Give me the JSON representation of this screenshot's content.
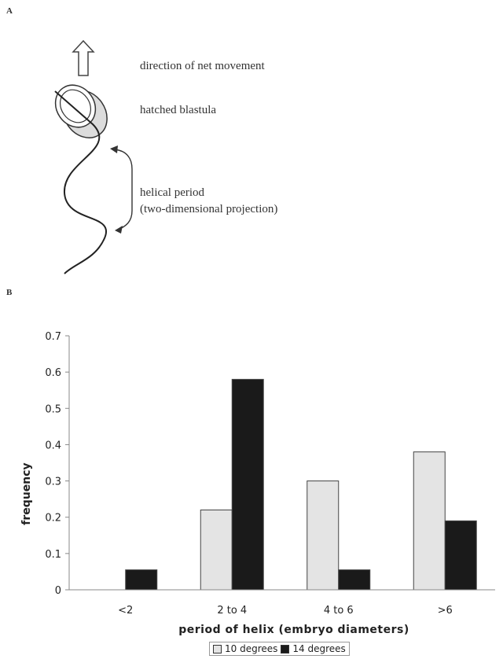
{
  "panel_a": {
    "label": "A",
    "direction_label": "direction of net movement",
    "embryo_label": "hatched blastula",
    "period_label_line1": "helical period",
    "period_label_line2": "(two-dimensional projection)"
  },
  "panel_b": {
    "label": "B"
  },
  "colors": {
    "ten_degrees": "#e4e4e4",
    "fourteen_degrees": "#1a1a1a"
  },
  "chart_data": {
    "type": "bar",
    "categories": [
      "<2",
      "2 to 4",
      "4 to 6",
      ">6"
    ],
    "series": [
      {
        "name": "10 degrees",
        "values": [
          0,
          0.22,
          0.3,
          0.38
        ]
      },
      {
        "name": "14 degrees",
        "values": [
          0.055,
          0.58,
          0.055,
          0.19
        ]
      }
    ],
    "xlabel": "period of helix (embryo diameters)",
    "ylabel": "frequency",
    "ylim": [
      0,
      0.7
    ],
    "yticks": [
      "0",
      "0.1",
      "0.2",
      "0.3",
      "0.4",
      "0.5",
      "0.6",
      "0.7"
    ],
    "grid": false,
    "legend_position": "bottom-center"
  }
}
